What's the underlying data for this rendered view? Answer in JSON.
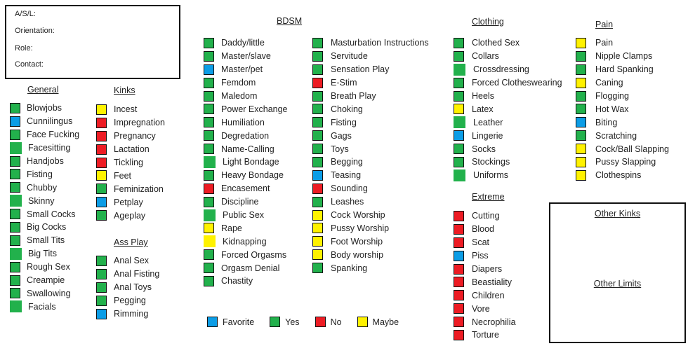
{
  "colors": {
    "favorite": "#0c9de6",
    "yes": "#22b14c",
    "no": "#ed1c24",
    "maybe": "#fff200"
  },
  "info": {
    "asl": "A/S/L:",
    "orientation": "Orientation:",
    "role": "Role:",
    "contact": "Contact:"
  },
  "sections": {
    "general": {
      "title": "General",
      "items": [
        {
          "label": "Blowjobs",
          "status": "yes"
        },
        {
          "label": "Cunnilingus",
          "status": "favorite"
        },
        {
          "label": "Face Fucking",
          "status": "yes"
        },
        {
          "label": "Facesitting",
          "status": "yes",
          "plain": true
        },
        {
          "label": "Handjobs",
          "status": "yes"
        },
        {
          "label": "Fisting",
          "status": "yes"
        },
        {
          "label": "Chubby",
          "status": "yes"
        },
        {
          "label": "Skinny",
          "status": "yes",
          "plain": true
        },
        {
          "label": "Small Cocks",
          "status": "yes"
        },
        {
          "label": "Big Cocks",
          "status": "yes"
        },
        {
          "label": "Small Tits",
          "status": "yes"
        },
        {
          "label": "Big Tits",
          "status": "yes",
          "plain": true
        },
        {
          "label": "Rough Sex",
          "status": "yes"
        },
        {
          "label": "Creampie",
          "status": "yes"
        },
        {
          "label": "Swallowing",
          "status": "yes"
        },
        {
          "label": "Facials",
          "status": "yes",
          "plain": true
        }
      ]
    },
    "kinks": {
      "title": "Kinks",
      "items": [
        {
          "label": "Incest",
          "status": "maybe"
        },
        {
          "label": "Impregnation",
          "status": "no"
        },
        {
          "label": "Pregnancy",
          "status": "no"
        },
        {
          "label": "Lactation",
          "status": "no"
        },
        {
          "label": "Tickling",
          "status": "no"
        },
        {
          "label": "Feet",
          "status": "maybe"
        },
        {
          "label": "Feminization",
          "status": "yes"
        },
        {
          "label": "Petplay",
          "status": "favorite"
        },
        {
          "label": "Ageplay",
          "status": "yes"
        }
      ]
    },
    "ass_play": {
      "title": "Ass Play",
      "items": [
        {
          "label": "Anal Sex",
          "status": "yes"
        },
        {
          "label": "Anal Fisting",
          "status": "yes"
        },
        {
          "label": "Anal Toys",
          "status": "yes"
        },
        {
          "label": "Pegging",
          "status": "yes"
        },
        {
          "label": "Rimming",
          "status": "favorite"
        }
      ]
    },
    "bdsm": {
      "title": "BDSM",
      "items": [
        {
          "label": "Daddy/little",
          "status": "yes"
        },
        {
          "label": "Master/slave",
          "status": "yes"
        },
        {
          "label": "Master/pet",
          "status": "favorite"
        },
        {
          "label": "Femdom",
          "status": "yes"
        },
        {
          "label": "Maledom",
          "status": "yes"
        },
        {
          "label": "Power Exchange",
          "status": "yes"
        },
        {
          "label": "Humiliation",
          "status": "yes"
        },
        {
          "label": "Degredation",
          "status": "yes"
        },
        {
          "label": "Name-Calling",
          "status": "yes"
        },
        {
          "label": "Light Bondage",
          "status": "yes",
          "plain": true
        },
        {
          "label": "Heavy Bondage",
          "status": "yes"
        },
        {
          "label": "Encasement",
          "status": "no"
        },
        {
          "label": "Discipline",
          "status": "yes"
        },
        {
          "label": "Public Sex",
          "status": "yes",
          "plain": true
        },
        {
          "label": "Rape",
          "status": "maybe"
        },
        {
          "label": "Kidnapping",
          "status": "maybe",
          "plain": true
        },
        {
          "label": "Forced Orgasms",
          "status": "yes"
        },
        {
          "label": "Orgasm Denial",
          "status": "yes"
        },
        {
          "label": "Chastity",
          "status": "yes"
        }
      ],
      "items2": [
        {
          "label": "Masturbation Instructions",
          "status": "yes"
        },
        {
          "label": "Servitude",
          "status": "yes"
        },
        {
          "label": "Sensation Play",
          "status": "yes"
        },
        {
          "label": "E-Stim",
          "status": "no"
        },
        {
          "label": "Breath Play",
          "status": "yes"
        },
        {
          "label": "Choking",
          "status": "yes"
        },
        {
          "label": "Fisting",
          "status": "yes"
        },
        {
          "label": "Gags",
          "status": "yes"
        },
        {
          "label": "Toys",
          "status": "yes"
        },
        {
          "label": "Begging",
          "status": "yes"
        },
        {
          "label": "Teasing",
          "status": "favorite"
        },
        {
          "label": "Sounding",
          "status": "no"
        },
        {
          "label": "Leashes",
          "status": "yes"
        },
        {
          "label": "Cock Worship",
          "status": "maybe"
        },
        {
          "label": "Pussy Worship",
          "status": "maybe"
        },
        {
          "label": "Foot Worship",
          "status": "maybe"
        },
        {
          "label": "Body worship",
          "status": "maybe"
        },
        {
          "label": "Spanking",
          "status": "yes"
        }
      ]
    },
    "clothing": {
      "title": "Clothing",
      "items": [
        {
          "label": "Clothed Sex",
          "status": "yes"
        },
        {
          "label": "Collars",
          "status": "yes"
        },
        {
          "label": "Crossdressing",
          "status": "yes",
          "plain": true
        },
        {
          "label": "Forced Clotheswearing",
          "status": "yes"
        },
        {
          "label": "Heels",
          "status": "yes"
        },
        {
          "label": "Latex",
          "status": "maybe"
        },
        {
          "label": "Leather",
          "status": "yes",
          "plain": true
        },
        {
          "label": "Lingerie",
          "status": "favorite"
        },
        {
          "label": "Socks",
          "status": "yes"
        },
        {
          "label": "Stockings",
          "status": "yes"
        },
        {
          "label": "Uniforms",
          "status": "yes",
          "plain": true
        }
      ]
    },
    "pain": {
      "title": "Pain",
      "items": [
        {
          "label": "Pain",
          "status": "maybe"
        },
        {
          "label": "Nipple Clamps",
          "status": "yes"
        },
        {
          "label": "Hard Spanking",
          "status": "yes"
        },
        {
          "label": "Caning",
          "status": "maybe"
        },
        {
          "label": "Flogging",
          "status": "yes"
        },
        {
          "label": "Hot Wax",
          "status": "yes"
        },
        {
          "label": "Biting",
          "status": "favorite"
        },
        {
          "label": "Scratching",
          "status": "yes"
        },
        {
          "label": "Cock/Ball Slapping",
          "status": "maybe"
        },
        {
          "label": "Pussy Slapping",
          "status": "maybe"
        },
        {
          "label": "Clothespins",
          "status": "maybe"
        }
      ]
    },
    "extreme": {
      "title": "Extreme",
      "items": [
        {
          "label": "Cutting",
          "status": "no"
        },
        {
          "label": "Blood",
          "status": "no"
        },
        {
          "label": "Scat",
          "status": "no"
        },
        {
          "label": "Piss",
          "status": "favorite"
        },
        {
          "label": "Diapers",
          "status": "no"
        },
        {
          "label": "Beastiality",
          "status": "no"
        },
        {
          "label": "Children",
          "status": "no"
        },
        {
          "label": "Vore",
          "status": "no"
        },
        {
          "label": "Necrophilia",
          "status": "no"
        },
        {
          "label": "Torture",
          "status": "no"
        }
      ]
    }
  },
  "other": {
    "kinks_label": "Other Kinks",
    "limits_label": "Other Limits"
  },
  "legend": [
    {
      "status": "favorite",
      "label": "Favorite"
    },
    {
      "status": "yes",
      "label": "Yes"
    },
    {
      "status": "no",
      "label": "No"
    },
    {
      "status": "maybe",
      "label": "Maybe"
    }
  ]
}
